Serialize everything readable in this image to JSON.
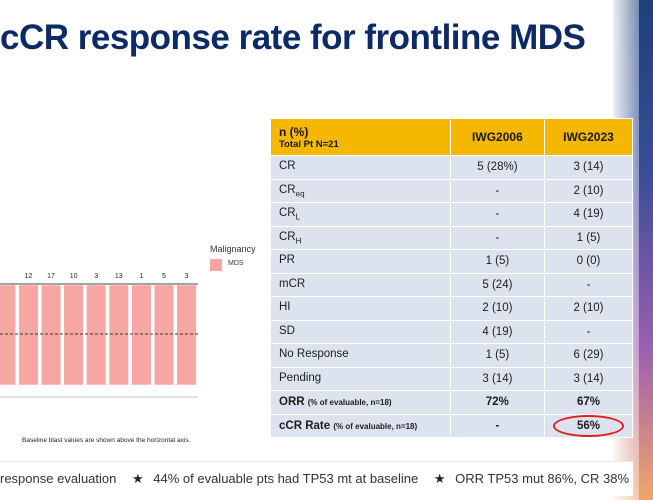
{
  "title": "cCR response rate for frontline MDS",
  "legend": {
    "title": "Malignancy",
    "label": "MDS",
    "color": "#f7a7a3"
  },
  "baseline_note": "Baseline blast values are shown above the horizontal axis.",
  "chart_data": {
    "type": "bar",
    "categories": [
      "",
      "12",
      "17",
      "10",
      "3",
      "13",
      "1",
      "5",
      "3"
    ],
    "values": [
      1,
      1,
      1,
      1,
      1,
      1,
      1,
      1,
      1
    ],
    "bar_color": "#f7a7a3",
    "reference_line": "dashed"
  },
  "table": {
    "header": {
      "col0": "n (%)",
      "col0_sub": "Total Pt N=21",
      "col1": "IWG2006",
      "col2": "IWG2023"
    },
    "rows": [
      {
        "label": "CR",
        "sub": "",
        "c1": "5 (28%)",
        "c2": "3 (14)"
      },
      {
        "label": "CR",
        "sub": "eq",
        "c1": "-",
        "c2": "2 (10)"
      },
      {
        "label": "CR",
        "sub": "L",
        "c1": "-",
        "c2": "4 (19)"
      },
      {
        "label": "CR",
        "sub": "H",
        "c1": "-",
        "c2": "1 (5)"
      },
      {
        "label": "PR",
        "sub": "",
        "c1": "1 (5)",
        "c2": "0 (0)"
      },
      {
        "label": "mCR",
        "sub": "",
        "c1": "5 (24)",
        "c2": "-"
      },
      {
        "label": "HI",
        "sub": "",
        "c1": "2 (10)",
        "c2": "2 (10)"
      },
      {
        "label": "SD",
        "sub": "",
        "c1": "4 (19)",
        "c2": "-"
      },
      {
        "label": "No Response",
        "sub": "",
        "c1": "1 (5)",
        "c2": "6 (29)"
      },
      {
        "label": "Pending",
        "sub": "",
        "c1": "3 (14)",
        "c2": "3 (14)"
      }
    ],
    "orr": {
      "label": "ORR",
      "note": "(% of evaluable, n=18)",
      "c1": "72%",
      "c2": "67%"
    },
    "ccr": {
      "label": "cCR Rate",
      "note": "(% of evaluable, n=18)",
      "c1": "-",
      "c2": "56%"
    }
  },
  "footer": {
    "item1": "response evaluation",
    "item2": "44% of evaluable pts had TP53 mt at baseline",
    "item3": "ORR TP53 mut 86%, CR 38%"
  }
}
